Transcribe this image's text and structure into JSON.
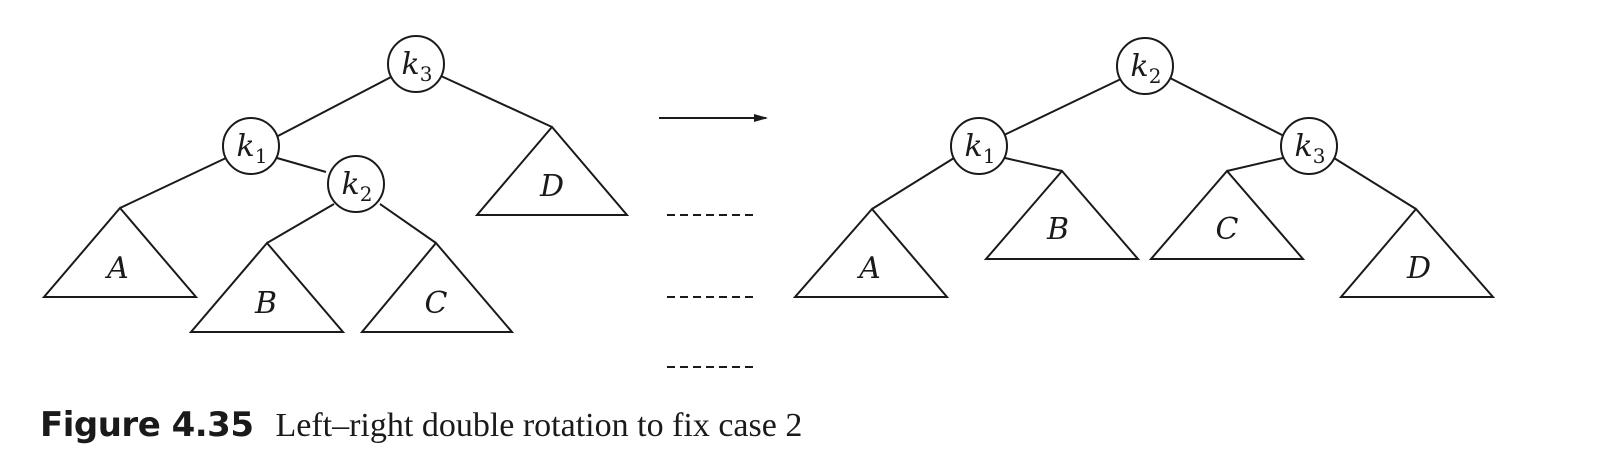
{
  "caption": {
    "number": "Figure 4.35",
    "text": "Left–right double rotation to fix case 2"
  },
  "before_tree": {
    "nodes": [
      {
        "base": "k",
        "sub": "3"
      },
      {
        "base": "k",
        "sub": "1"
      },
      {
        "base": "k",
        "sub": "2"
      }
    ],
    "subtrees": [
      "A",
      "B",
      "C",
      "D"
    ]
  },
  "after_tree": {
    "nodes": [
      {
        "base": "k",
        "sub": "2"
      },
      {
        "base": "k",
        "sub": "1"
      },
      {
        "base": "k",
        "sub": "3"
      }
    ],
    "subtrees": [
      "A",
      "B",
      "C",
      "D"
    ]
  },
  "arrow": {
    "direction": "right"
  }
}
